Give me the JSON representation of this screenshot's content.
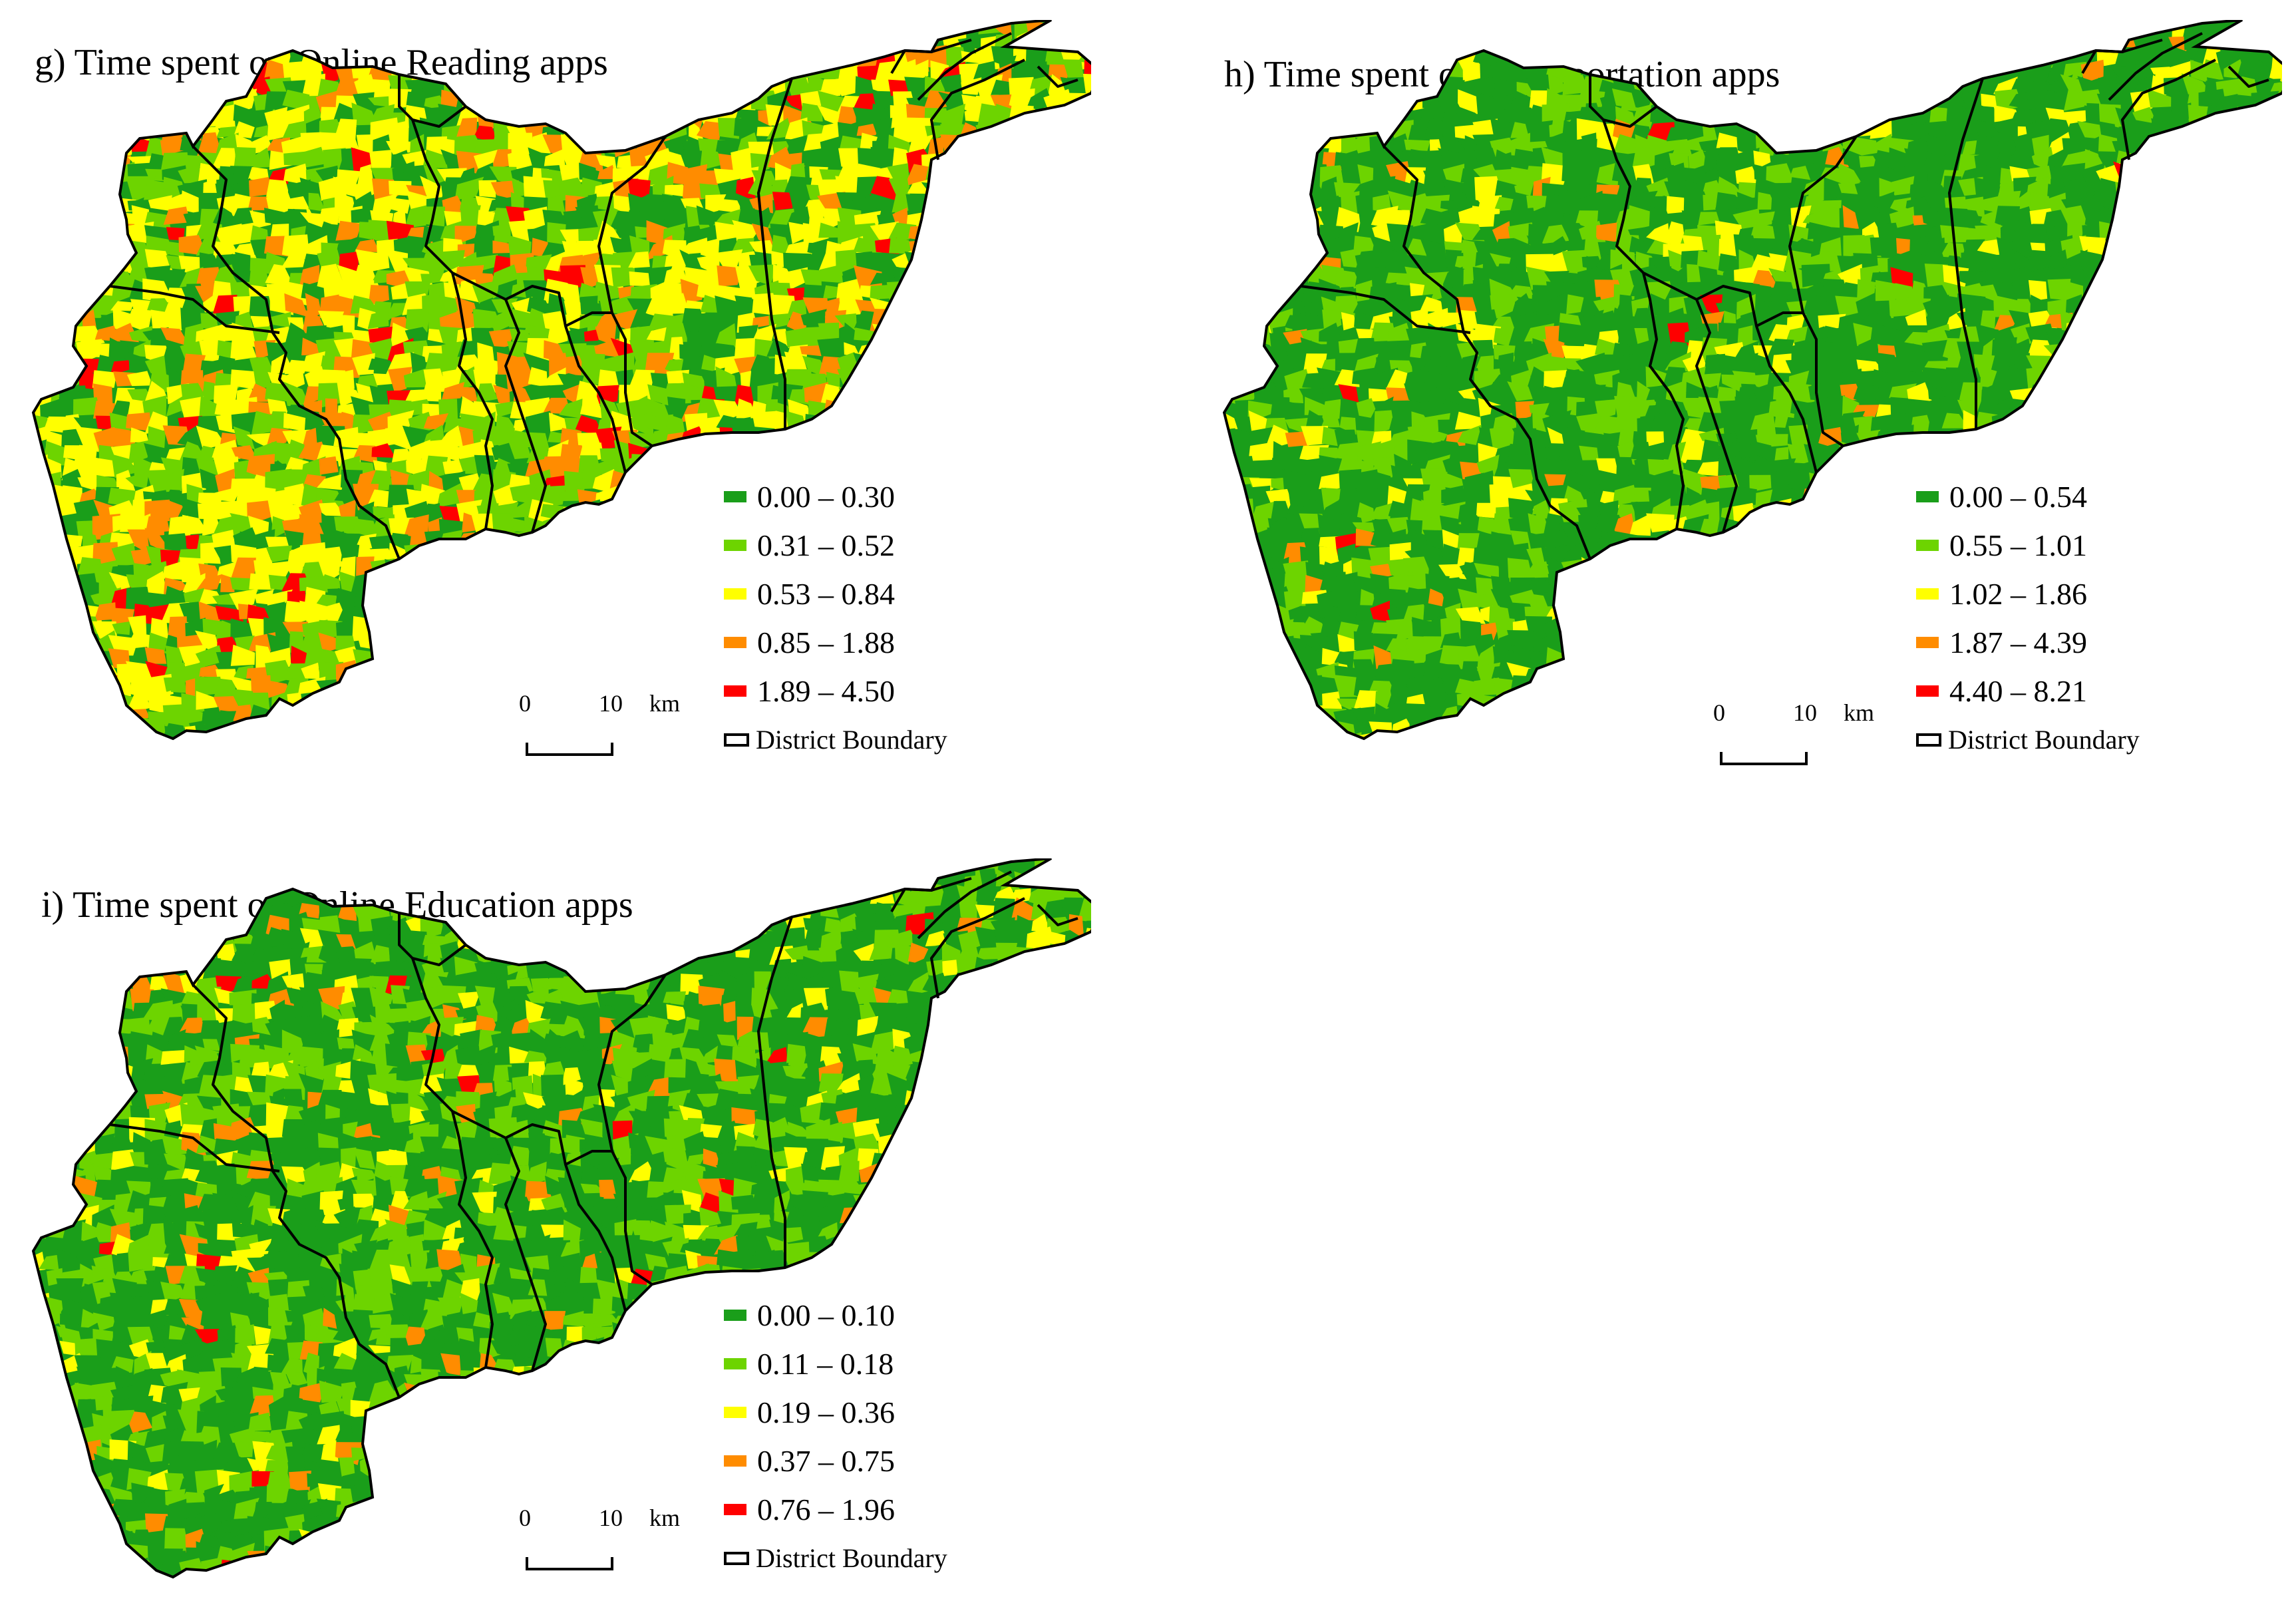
{
  "colors": {
    "class1": "#1a9e1a",
    "class2": "#6dd400",
    "class3": "#ffff00",
    "class4": "#ff8c00",
    "class5": "#ff0000",
    "boundary": "#000000"
  },
  "panels": [
    {
      "title": "g) Time spent on Online Reading apps",
      "legend": [
        "0.00 – 0.30",
        "0.31 – 0.52",
        "0.53 – 0.84",
        "0.85 – 1.88",
        "1.89 – 4.50"
      ],
      "boundary_label": "District Boundary",
      "scale": {
        "zero": "0",
        "ten": "10",
        "unit": "km"
      },
      "weights": [
        0.2,
        0.28,
        0.34,
        0.15,
        0.03
      ]
    },
    {
      "title": "h) Time spent on Transportation apps",
      "legend": [
        "0.00 – 0.54",
        "0.55 – 1.01",
        "1.02 – 1.86",
        "1.87 – 4.39",
        "4.40 – 8.21"
      ],
      "boundary_label": "District Boundary",
      "scale": {
        "zero": "0",
        "ten": "10",
        "unit": "km"
      },
      "weights": [
        0.62,
        0.26,
        0.09,
        0.025,
        0.005
      ]
    },
    {
      "title": "i) Time spent on Online Education apps",
      "legend": [
        "0.00 – 0.10",
        "0.11 – 0.18",
        "0.19 – 0.36",
        "0.37 – 0.75",
        "0.76 – 1.96"
      ],
      "boundary_label": "District Boundary",
      "scale": {
        "zero": "0",
        "ten": "10",
        "unit": "km"
      },
      "weights": [
        0.55,
        0.32,
        0.08,
        0.04,
        0.01
      ]
    }
  ]
}
